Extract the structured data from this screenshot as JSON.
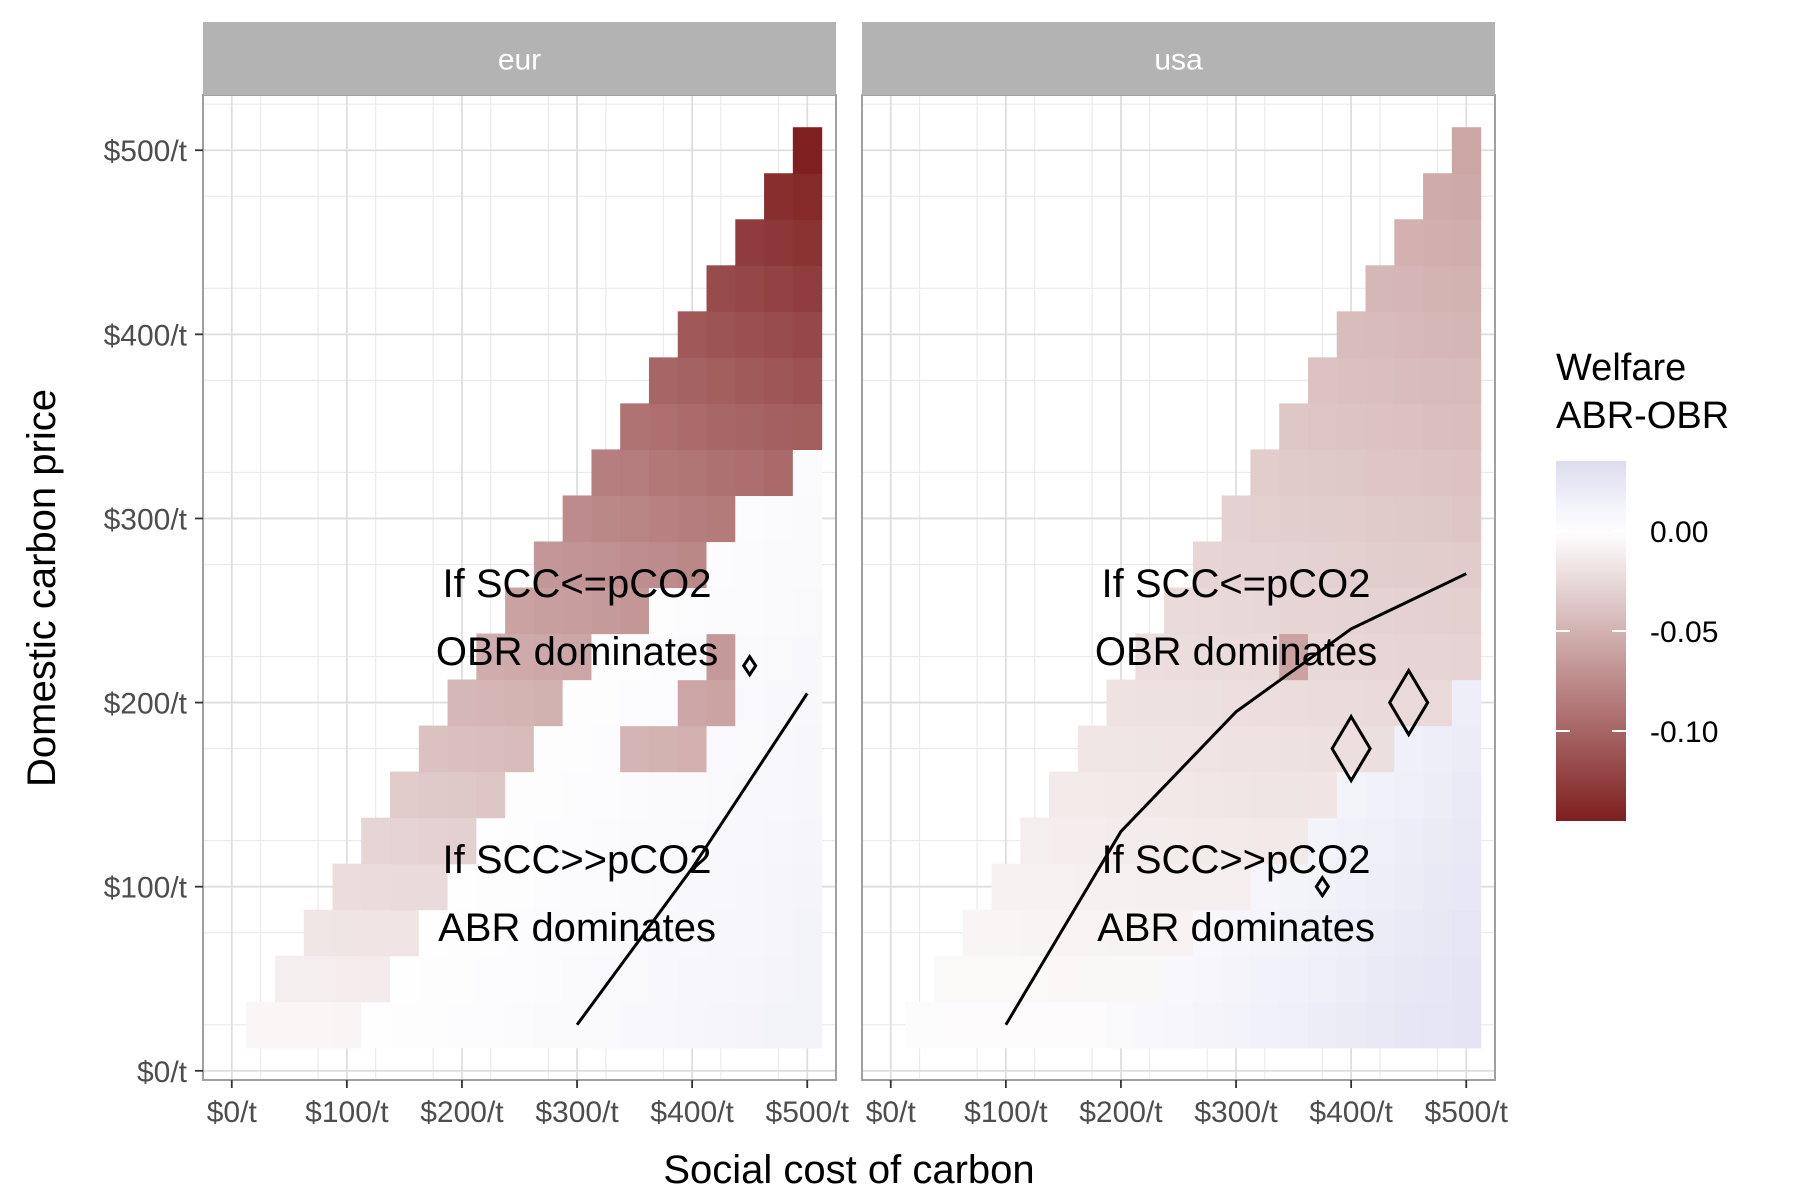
{
  "chart_data": {
    "type": "heatmap",
    "title": "",
    "xlabel": "Social cost of carbon",
    "ylabel": "Domestic carbon price",
    "xlim": [
      -25,
      525
    ],
    "ylim": [
      -5,
      530
    ],
    "x_ticks": [
      {
        "value": 0,
        "label": "$0/t"
      },
      {
        "value": 100,
        "label": "$100/t"
      },
      {
        "value": 200,
        "label": "$200/t"
      },
      {
        "value": 300,
        "label": "$300/t"
      },
      {
        "value": 400,
        "label": "$400/t"
      },
      {
        "value": 500,
        "label": "$500/t"
      }
    ],
    "y_ticks": [
      {
        "value": 0,
        "label": "$0/t"
      },
      {
        "value": 100,
        "label": "$100/t"
      },
      {
        "value": 200,
        "label": "$200/t"
      },
      {
        "value": 300,
        "label": "$300/t"
      },
      {
        "value": 400,
        "label": "$400/t"
      },
      {
        "value": 500,
        "label": "$500/t"
      }
    ],
    "grid": true,
    "cell_x_step": 25,
    "cell_y_step": 25,
    "legend": {
      "title_lines": [
        "Welfare",
        "ABR-OBR"
      ],
      "position": "right",
      "range": [
        -0.145,
        0.035
      ],
      "ticks": [
        {
          "value": 0.0,
          "label": "0.00"
        },
        {
          "value": -0.05,
          "label": "-0.05"
        },
        {
          "value": -0.1,
          "label": "-0.10"
        }
      ],
      "colors": {
        "low": "#7f1f1f",
        "mid": "#ffffff",
        "high": "#dcdcf0"
      }
    },
    "panels": [
      {
        "name": "eur",
        "min_welfare": -0.145,
        "max_welfare": 0.012,
        "boundary_y_intercept": 30,
        "boundary_cells": [
          [
            350,
            175
          ],
          [
            375,
            175
          ],
          [
            400,
            175
          ],
          [
            400,
            200
          ],
          [
            425,
            200
          ],
          [
            425,
            225
          ]
        ],
        "anomalies": [],
        "contour_line": [
          [
            300,
            25
          ],
          [
            400,
            110
          ],
          [
            500,
            205
          ]
        ],
        "diamonds": [
          {
            "x": 450,
            "y": 220,
            "size": "small"
          }
        ],
        "annotations": [
          {
            "text": "If SCC<=pCO2",
            "x": 300,
            "y": 265
          },
          {
            "text": "OBR dominates",
            "x": 300,
            "y": 228
          },
          {
            "text": "If SCC>>pCO2",
            "x": 300,
            "y": 115
          },
          {
            "text": "ABR dominates",
            "x": 300,
            "y": 78
          }
        ]
      },
      {
        "name": "usa",
        "min_welfare": -0.058,
        "max_welfare": 0.027,
        "boundary_y_intercept": -90,
        "boundary_cells": [],
        "anomalies": [
          {
            "x": 350,
            "y": 225,
            "value": -0.06
          }
        ],
        "contour_line": [
          [
            100,
            25
          ],
          [
            200,
            130
          ],
          [
            300,
            195
          ],
          [
            400,
            240
          ],
          [
            500,
            270
          ]
        ],
        "diamonds": [
          {
            "x": 375,
            "y": 100,
            "size": "small"
          },
          {
            "x": 400,
            "y": 175,
            "size": "large"
          },
          {
            "x": 450,
            "y": 200,
            "size": "large"
          }
        ],
        "annotations": [
          {
            "text": "If SCC<=pCO2",
            "x": 300,
            "y": 265
          },
          {
            "text": "OBR dominates",
            "x": 300,
            "y": 228
          },
          {
            "text": "If SCC>>pCO2",
            "x": 300,
            "y": 115
          },
          {
            "text": "ABR dominates",
            "x": 300,
            "y": 78
          }
        ]
      }
    ]
  }
}
